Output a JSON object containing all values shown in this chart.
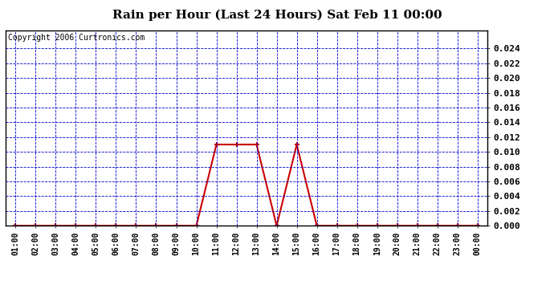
{
  "title": "Rain per Hour (Last 24 Hours) Sat Feb 11 00:00",
  "copyright": "Copyright 2006 Curtronics.com",
  "x_labels": [
    "01:00",
    "02:00",
    "03:00",
    "04:00",
    "05:00",
    "06:00",
    "07:00",
    "08:00",
    "09:00",
    "10:00",
    "11:00",
    "12:00",
    "13:00",
    "14:00",
    "15:00",
    "16:00",
    "17:00",
    "18:00",
    "19:00",
    "20:00",
    "21:00",
    "22:00",
    "23:00",
    "00:00"
  ],
  "x_values": [
    1,
    2,
    3,
    4,
    5,
    6,
    7,
    8,
    9,
    10,
    11,
    12,
    13,
    14,
    15,
    16,
    17,
    18,
    19,
    20,
    21,
    22,
    23,
    24
  ],
  "y_values": [
    0,
    0,
    0,
    0,
    0,
    0,
    0,
    0,
    0,
    0,
    0.011,
    0.011,
    0.011,
    0,
    0.011,
    0,
    0,
    0,
    0,
    0,
    0,
    0,
    0,
    0
  ],
  "ylim": [
    0,
    0.0265
  ],
  "yticks": [
    0.0,
    0.002,
    0.004,
    0.006,
    0.008,
    0.01,
    0.012,
    0.014,
    0.016,
    0.018,
    0.02,
    0.022,
    0.024
  ],
  "line_color": "#cc0000",
  "marker_color": "#cc0000",
  "grid_color": "#0000cc",
  "bg_color": "#ffffff",
  "title_fontsize": 11,
  "copyright_fontsize": 7,
  "tick_fontsize": 7,
  "ytick_fontsize": 8
}
